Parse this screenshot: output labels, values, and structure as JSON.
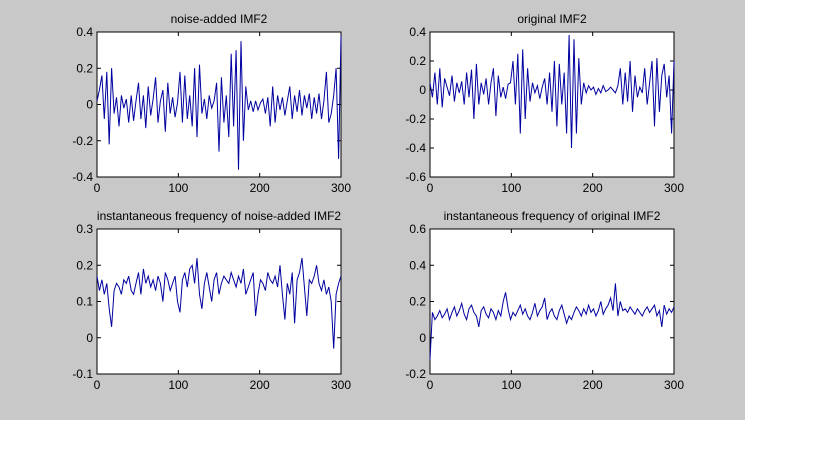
{
  "figure": {
    "background": "#c8c8c8",
    "line_color": "#0000a0"
  },
  "chart_data": [
    {
      "type": "line",
      "title": "noise-added IMF2",
      "xlim": [
        0,
        300
      ],
      "ylim": [
        -0.4,
        0.4
      ],
      "xticks": [
        0,
        100,
        200,
        300
      ],
      "yticks": [
        -0.4,
        -0.2,
        0,
        0.2,
        0.4
      ],
      "series": [
        {
          "x": [
            0,
            3,
            6,
            9,
            12,
            15,
            18,
            21,
            24,
            27,
            30,
            33,
            36,
            39,
            42,
            45,
            48,
            51,
            54,
            57,
            60,
            63,
            66,
            69,
            72,
            75,
            78,
            81,
            84,
            87,
            90,
            93,
            96,
            99,
            102,
            105,
            108,
            111,
            114,
            117,
            120,
            123,
            126,
            129,
            132,
            135,
            138,
            141,
            144,
            147,
            150,
            153,
            156,
            159,
            162,
            165,
            168,
            171,
            174,
            177,
            180,
            183,
            186,
            189,
            192,
            195,
            198,
            201,
            204,
            207,
            210,
            213,
            216,
            219,
            222,
            225,
            228,
            231,
            234,
            237,
            240,
            243,
            246,
            249,
            252,
            255,
            258,
            261,
            264,
            267,
            270,
            273,
            276,
            279,
            282,
            285,
            288,
            291,
            294,
            297,
            300
          ],
          "values": [
            0.02,
            0.08,
            0.16,
            -0.08,
            0.18,
            -0.22,
            0.2,
            -0.05,
            0.04,
            -0.12,
            0.05,
            -0.02,
            0.03,
            -0.1,
            0.05,
            -0.09,
            0.02,
            0.12,
            -0.08,
            0.05,
            -0.13,
            0.1,
            -0.06,
            0.03,
            0.15,
            -0.1,
            0.02,
            0.08,
            -0.15,
            0.12,
            -0.05,
            0.04,
            -0.07,
            0.01,
            0.18,
            -0.1,
            0.16,
            -0.08,
            0.05,
            -0.12,
            0.2,
            -0.18,
            0.22,
            -0.05,
            0.03,
            -0.08,
            0.05,
            -0.02,
            0.02,
            0.12,
            -0.26,
            0.15,
            -0.1,
            0.05,
            -0.18,
            0.28,
            -0.12,
            0.3,
            -0.36,
            0.35,
            -0.2,
            0.1,
            -0.03,
            0.02,
            -0.04,
            0.02,
            -0.03,
            0.01,
            0.03,
            -0.05,
            0.04,
            -0.12,
            0.1,
            -0.1,
            0.05,
            -0.03,
            0.04,
            -0.06,
            0.02,
            0.1,
            -0.08,
            0.05,
            -0.04,
            0.08,
            -0.06,
            0.05,
            -0.02,
            0.06,
            -0.08,
            0.04,
            -0.05,
            0.06,
            -0.08,
            0.02,
            0.18,
            -0.1,
            -0.05,
            0.05,
            0.2,
            -0.3,
            0.38
          ]
        }
      ]
    },
    {
      "type": "line",
      "title": "original IMF2",
      "xlim": [
        0,
        300
      ],
      "ylim": [
        -0.6,
        0.4
      ],
      "xticks": [
        0,
        100,
        200,
        300
      ],
      "yticks": [
        -0.6,
        -0.4,
        -0.2,
        0,
        0.2,
        0.4
      ],
      "series": [
        {
          "x": [
            0,
            3,
            6,
            9,
            12,
            15,
            18,
            21,
            24,
            27,
            30,
            33,
            36,
            39,
            42,
            45,
            48,
            51,
            54,
            57,
            60,
            63,
            66,
            69,
            72,
            75,
            78,
            81,
            84,
            87,
            90,
            93,
            96,
            99,
            102,
            105,
            108,
            111,
            114,
            117,
            120,
            123,
            126,
            129,
            132,
            135,
            138,
            141,
            144,
            147,
            150,
            153,
            156,
            159,
            162,
            165,
            168,
            171,
            174,
            177,
            180,
            183,
            186,
            189,
            192,
            195,
            198,
            201,
            204,
            207,
            210,
            213,
            216,
            219,
            222,
            225,
            228,
            231,
            234,
            237,
            240,
            243,
            246,
            249,
            252,
            255,
            258,
            261,
            264,
            267,
            270,
            273,
            276,
            279,
            282,
            285,
            288,
            291,
            294,
            297,
            300
          ],
          "values": [
            0.05,
            -0.05,
            0.12,
            -0.1,
            0.15,
            -0.12,
            0.08,
            0.02,
            -0.04,
            0.1,
            -0.08,
            0.05,
            -0.02,
            0.06,
            -0.1,
            0.12,
            -0.05,
            0.14,
            -0.2,
            0.18,
            -0.1,
            0.05,
            -0.03,
            0.08,
            -0.1,
            0.05,
            0.15,
            -0.18,
            0.1,
            -0.05,
            0.02,
            -0.06,
            0.04,
            0.05,
            0.2,
            -0.1,
            0.25,
            -0.3,
            0.28,
            -0.2,
            0.15,
            -0.08,
            0.05,
            -0.02,
            0.03,
            -0.06,
            0.02,
            0.08,
            -0.1,
            0.12,
            -0.15,
            0.2,
            -0.25,
            0.18,
            -0.1,
            0.12,
            -0.3,
            0.38,
            -0.4,
            0.35,
            -0.3,
            0.22,
            -0.1,
            0.05,
            -0.02,
            0.03,
            0.0,
            0.02,
            -0.03,
            0.01,
            -0.02,
            0.03,
            -0.01,
            0.0,
            0.02,
            0.0,
            -0.02,
            0.03,
            0.15,
            -0.1,
            0.12,
            -0.08,
            0.2,
            -0.15,
            0.1,
            -0.05,
            0.02,
            -0.02,
            0.15,
            -0.1,
            0.05,
            0.2,
            -0.25,
            0.22,
            -0.15,
            0.1,
            0.18,
            -0.05,
            0.1,
            -0.3,
            0.2
          ]
        }
      ]
    },
    {
      "type": "line",
      "title": "instantaneous frequency of noise-added IMF2",
      "xlim": [
        0,
        300
      ],
      "ylim": [
        -0.1,
        0.3
      ],
      "xticks": [
        0,
        100,
        200,
        300
      ],
      "yticks": [
        -0.1,
        0,
        0.1,
        0.2,
        0.3
      ],
      "series": [
        {
          "x": [
            0,
            3,
            6,
            9,
            12,
            15,
            18,
            21,
            24,
            27,
            30,
            33,
            36,
            39,
            42,
            45,
            48,
            51,
            54,
            57,
            60,
            63,
            66,
            69,
            72,
            75,
            78,
            81,
            84,
            87,
            90,
            93,
            96,
            99,
            102,
            105,
            108,
            111,
            114,
            117,
            120,
            123,
            126,
            129,
            132,
            135,
            138,
            141,
            144,
            147,
            150,
            153,
            156,
            159,
            162,
            165,
            168,
            171,
            174,
            177,
            180,
            183,
            186,
            189,
            192,
            195,
            198,
            201,
            204,
            207,
            210,
            213,
            216,
            219,
            222,
            225,
            228,
            231,
            234,
            237,
            240,
            243,
            246,
            249,
            252,
            255,
            258,
            261,
            264,
            267,
            270,
            273,
            276,
            279,
            282,
            285,
            288,
            291,
            294,
            297,
            300
          ],
          "values": [
            0.17,
            0.13,
            0.16,
            0.12,
            0.15,
            0.08,
            0.03,
            0.13,
            0.15,
            0.14,
            0.12,
            0.16,
            0.15,
            0.17,
            0.13,
            0.12,
            0.15,
            0.18,
            0.12,
            0.19,
            0.15,
            0.17,
            0.14,
            0.16,
            0.13,
            0.17,
            0.15,
            0.1,
            0.18,
            0.16,
            0.13,
            0.15,
            0.17,
            0.1,
            0.07,
            0.16,
            0.18,
            0.14,
            0.19,
            0.2,
            0.15,
            0.22,
            0.12,
            0.08,
            0.15,
            0.18,
            0.14,
            0.1,
            0.16,
            0.18,
            0.12,
            0.15,
            0.17,
            0.16,
            0.15,
            0.18,
            0.16,
            0.14,
            0.17,
            0.15,
            0.19,
            0.12,
            0.14,
            0.16,
            0.18,
            0.06,
            0.12,
            0.16,
            0.15,
            0.13,
            0.18,
            0.16,
            0.15,
            0.17,
            0.14,
            0.2,
            0.12,
            0.05,
            0.15,
            0.12,
            0.18,
            0.04,
            0.16,
            0.18,
            0.22,
            0.14,
            0.06,
            0.16,
            0.15,
            0.17,
            0.2,
            0.15,
            0.13,
            0.16,
            0.12,
            0.14,
            0.1,
            -0.03,
            0.12,
            0.15,
            0.17
          ]
        }
      ]
    },
    {
      "type": "line",
      "title": "instantaneous frequency of original IMF2",
      "xlim": [
        0,
        300
      ],
      "ylim": [
        -0.2,
        0.6
      ],
      "xticks": [
        0,
        100,
        200,
        300
      ],
      "yticks": [
        -0.2,
        0,
        0.2,
        0.4,
        0.6
      ],
      "series": [
        {
          "x": [
            0,
            3,
            6,
            9,
            12,
            15,
            18,
            21,
            24,
            27,
            30,
            33,
            36,
            39,
            42,
            45,
            48,
            51,
            54,
            57,
            60,
            63,
            66,
            69,
            72,
            75,
            78,
            81,
            84,
            87,
            90,
            93,
            96,
            99,
            102,
            105,
            108,
            111,
            114,
            117,
            120,
            123,
            126,
            129,
            132,
            135,
            138,
            141,
            144,
            147,
            150,
            153,
            156,
            159,
            162,
            165,
            168,
            171,
            174,
            177,
            180,
            183,
            186,
            189,
            192,
            195,
            198,
            201,
            204,
            207,
            210,
            213,
            216,
            219,
            222,
            225,
            228,
            231,
            234,
            237,
            240,
            243,
            246,
            249,
            252,
            255,
            258,
            261,
            264,
            267,
            270,
            273,
            276,
            279,
            282,
            285,
            288,
            291,
            294,
            297,
            300
          ],
          "values": [
            -0.12,
            0.14,
            0.1,
            0.12,
            0.15,
            0.11,
            0.13,
            0.16,
            0.1,
            0.14,
            0.17,
            0.12,
            0.15,
            0.19,
            0.13,
            0.1,
            0.16,
            0.18,
            0.14,
            0.12,
            0.06,
            0.15,
            0.17,
            0.13,
            0.11,
            0.16,
            0.14,
            0.1,
            0.15,
            0.12,
            0.2,
            0.25,
            0.16,
            0.1,
            0.14,
            0.12,
            0.15,
            0.18,
            0.13,
            0.16,
            0.12,
            0.1,
            0.14,
            0.19,
            0.12,
            0.15,
            0.17,
            0.22,
            0.1,
            0.14,
            0.16,
            0.12,
            0.1,
            0.15,
            0.18,
            0.13,
            0.08,
            0.12,
            0.1,
            0.14,
            0.17,
            0.15,
            0.12,
            0.16,
            0.13,
            0.18,
            0.14,
            0.16,
            0.12,
            0.15,
            0.2,
            0.13,
            0.16,
            0.18,
            0.22,
            0.15,
            0.3,
            0.12,
            0.2,
            0.15,
            0.16,
            0.14,
            0.17,
            0.15,
            0.13,
            0.16,
            0.14,
            0.12,
            0.15,
            0.17,
            0.14,
            0.16,
            0.18,
            0.12,
            0.15,
            0.06,
            0.18,
            0.13,
            0.16,
            0.14,
            0.17
          ]
        }
      ]
    }
  ]
}
